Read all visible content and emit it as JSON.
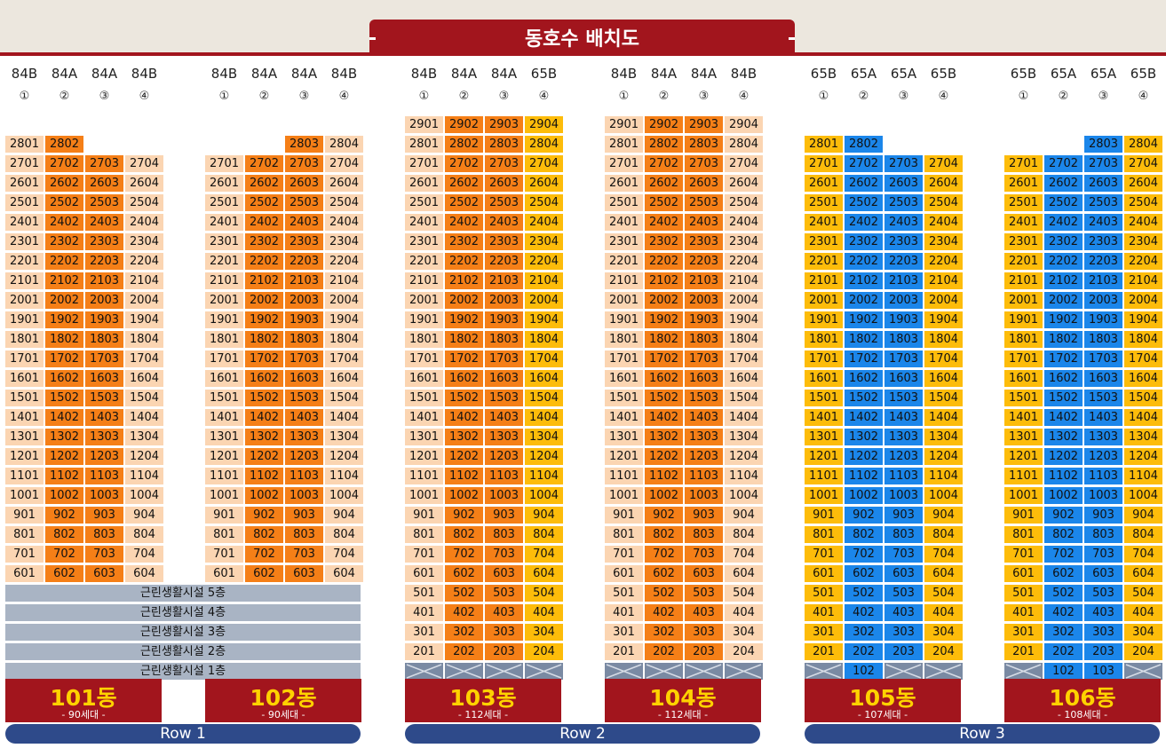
{
  "title": "동호수 배치도",
  "colors": {
    "light": "#fbd5b2",
    "orange": "#f57f17",
    "yellow": "#fdbc0a",
    "blue": "#1b86ea",
    "dark_red": "#a2151d",
    "facility": "#a9b4c4",
    "row_bar": "#2e4a8a"
  },
  "buildings": [
    {
      "dong": "101동",
      "households": "- 90세대 -",
      "types": [
        "84B",
        "84A",
        "84A",
        "84B"
      ],
      "lines": [
        "①",
        "②",
        "③",
        "④"
      ],
      "top_floor": {
        "28": [
          1,
          2
        ]
      },
      "min_floor": 6,
      "facility_floors": [
        "근린생활시설 5층",
        "근린생활시설 4층",
        "근린생활시설 3층",
        "근린생활시설 2층",
        "근린생활시설 1층"
      ],
      "ground": null,
      "colors": [
        "light",
        "orange",
        "orange",
        "light"
      ]
    },
    {
      "dong": "102동",
      "households": "- 90세대 -",
      "types": [
        "84B",
        "84A",
        "84A",
        "84B"
      ],
      "lines": [
        "①",
        "②",
        "③",
        "④"
      ],
      "top_floor": {
        "28": [
          3,
          4
        ]
      },
      "min_floor": 6,
      "facility_floors": [],
      "ground": null,
      "colors": [
        "light",
        "orange",
        "orange",
        "light"
      ]
    },
    {
      "dong": "103동",
      "households": "- 112세대 -",
      "types": [
        "84B",
        "84A",
        "84A",
        "65B"
      ],
      "lines": [
        "①",
        "②",
        "③",
        "④"
      ],
      "top_floor": {
        "29": [
          1,
          2,
          3,
          4
        ]
      },
      "min_floor": 2,
      "facility_floors": [],
      "ground": [
        false,
        false,
        false,
        false
      ],
      "colors": [
        "light",
        "orange",
        "orange",
        "yellow"
      ]
    },
    {
      "dong": "104동",
      "households": "- 112세대 -",
      "types": [
        "84B",
        "84A",
        "84A",
        "84B"
      ],
      "lines": [
        "①",
        "②",
        "③",
        "④"
      ],
      "top_floor": {
        "29": [
          1,
          2,
          3,
          4
        ]
      },
      "min_floor": 2,
      "facility_floors": [],
      "ground": [
        false,
        false,
        false,
        false
      ],
      "colors": [
        "light",
        "orange",
        "orange",
        "light"
      ]
    },
    {
      "dong": "105동",
      "households": "- 107세대 -",
      "types": [
        "65B",
        "65A",
        "65A",
        "65B"
      ],
      "lines": [
        "①",
        "②",
        "③",
        "④"
      ],
      "top_floor": {
        "28": [
          1,
          2
        ]
      },
      "min_floor": 2,
      "facility_floors": [],
      "ground": [
        false,
        "102",
        false,
        false
      ],
      "colors": [
        "yellow",
        "blue",
        "blue",
        "yellow"
      ]
    },
    {
      "dong": "106동",
      "households": "- 108세대 -",
      "types": [
        "65B",
        "65A",
        "65A",
        "65B"
      ],
      "lines": [
        "①",
        "②",
        "③",
        "④"
      ],
      "top_floor": {
        "28": [
          3,
          4
        ]
      },
      "min_floor": 2,
      "facility_floors": [],
      "ground": [
        false,
        "102",
        "103",
        false
      ],
      "colors": [
        "yellow",
        "blue",
        "blue",
        "yellow"
      ]
    }
  ],
  "rows": [
    "Row 1",
    "Row 2",
    "Row 3"
  ]
}
